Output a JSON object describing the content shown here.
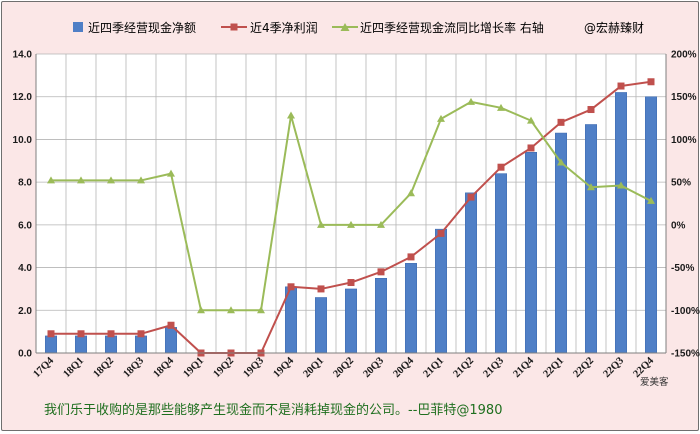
{
  "chart_data": {
    "type": "bar",
    "categories": [
      "17Q4",
      "18Q1",
      "18Q2",
      "18Q3",
      "18Q4",
      "19Q1",
      "19Q2",
      "19Q3",
      "19Q4",
      "20Q1",
      "20Q2",
      "20Q3",
      "20Q4",
      "21Q1",
      "21Q2",
      "21Q3",
      "21Q4",
      "22Q1",
      "22Q2",
      "22Q3",
      "22Q4"
    ],
    "series": [
      {
        "name": "近四季经营现金净额",
        "kind": "bar",
        "axis": "left",
        "color": "#4f7fc6",
        "values": [
          0.8,
          0.8,
          0.8,
          0.8,
          1.2,
          null,
          null,
          null,
          3.1,
          2.6,
          3.0,
          3.5,
          4.2,
          5.8,
          7.5,
          8.4,
          9.4,
          10.3,
          10.7,
          12.2,
          12.0
        ]
      },
      {
        "name": "近4季净利润",
        "kind": "line",
        "axis": "left",
        "color": "#c0504d",
        "values": [
          0.9,
          0.9,
          0.9,
          0.9,
          1.3,
          0.0,
          0.0,
          0.0,
          3.1,
          3.0,
          3.3,
          3.8,
          4.5,
          5.6,
          7.3,
          8.7,
          9.6,
          10.8,
          11.4,
          12.5,
          12.7
        ]
      },
      {
        "name": "近四季经营现金流同比增长率 右轴",
        "kind": "line",
        "axis": "right",
        "color": "#9bbb59",
        "values": [
          52,
          52,
          52,
          52,
          60,
          -100,
          -100,
          -100,
          128,
          0,
          0,
          0,
          37,
          124,
          144,
          137,
          122,
          73,
          44,
          46,
          28
        ]
      }
    ],
    "ylim": [
      0,
      14
    ],
    "yticks": [
      "0.0",
      "2.0",
      "4.0",
      "6.0",
      "8.0",
      "10.0",
      "12.0",
      "14.0"
    ],
    "y2lim": [
      -150,
      200
    ],
    "y2ticks": [
      "-150%",
      "-100%",
      "-50%",
      "0%",
      "50%",
      "100%",
      "150%",
      "200%"
    ],
    "legend_position": "top",
    "grid": true
  },
  "legend_extra": "@宏赫臻财",
  "footer": {
    "quote": "我们乐于收购的是那些能够产生现金而不是消耗掉现金的公司。--巴菲特@1980",
    "credit": "爱美客"
  }
}
